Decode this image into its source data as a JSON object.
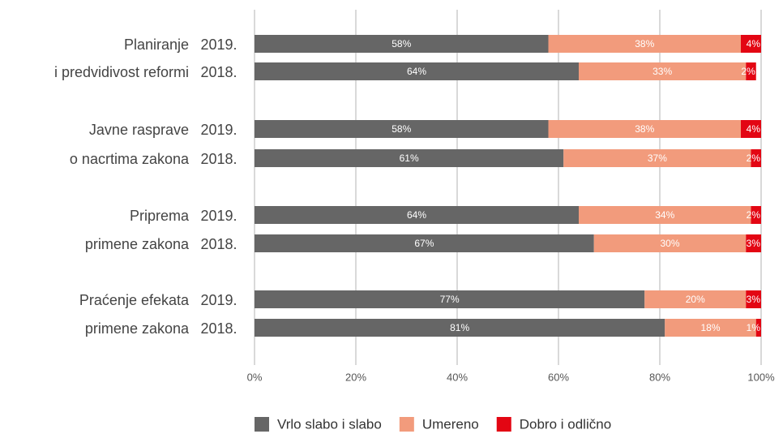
{
  "chart_data": {
    "type": "stacked-barh",
    "groups": [
      {
        "lines": [
          "Planiranje",
          "i predvidivost reformi"
        ]
      },
      {
        "lines": [
          "Javne rasprave",
          "o nacrtima zakona"
        ]
      },
      {
        "lines": [
          "Priprema",
          "primene zakona"
        ]
      },
      {
        "lines": [
          "Praćenje efekata",
          "primene zakona"
        ]
      }
    ],
    "categories": [
      "2019.",
      "2018.",
      "2019.",
      "2018.",
      "2019.",
      "2018.",
      "2019.",
      "2018."
    ],
    "series": [
      {
        "name": "Vrlo slabo i slabo",
        "color": "#666666",
        "values": [
          58,
          64,
          58,
          61,
          64,
          67,
          77,
          81
        ],
        "value_labels": [
          "58%",
          "64%",
          "58%",
          "61%",
          "64%",
          "67%",
          "77%",
          "81%"
        ]
      },
      {
        "name": "Umereno",
        "color": "#f29b7c",
        "values": [
          38,
          33,
          38,
          37,
          34,
          30,
          20,
          18
        ],
        "value_labels": [
          "38%",
          "33%",
          "38%",
          "37%",
          "34%",
          "30%",
          "20%",
          "18%"
        ]
      },
      {
        "name": "Dobro i odlično",
        "color": "#e30613",
        "values": [
          4,
          2,
          4,
          2,
          2,
          3,
          3,
          1
        ],
        "value_labels": [
          "4%",
          "2%",
          "4%",
          "2%",
          "2%",
          "3%",
          "3%",
          "1%"
        ]
      }
    ],
    "xlim": [
      0,
      100
    ],
    "xticks": [
      {
        "value": 0,
        "label": "0%"
      },
      {
        "value": 20,
        "label": "20%"
      },
      {
        "value": 40,
        "label": "40%"
      },
      {
        "value": 60,
        "label": "60%"
      },
      {
        "value": 80,
        "label": "80%"
      },
      {
        "value": 100,
        "label": "100%"
      }
    ],
    "grid": true,
    "legend": "bottom"
  }
}
